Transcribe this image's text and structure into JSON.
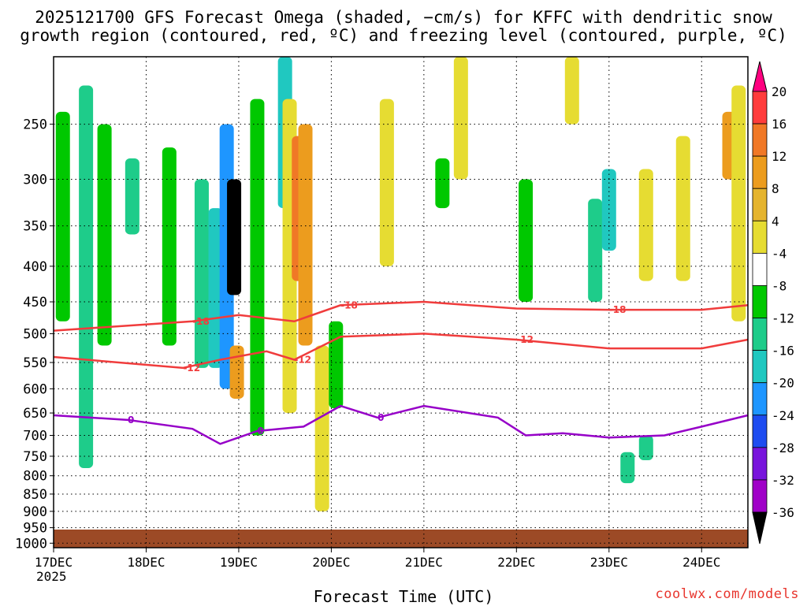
{
  "chart_data": {
    "type": "heatmap",
    "title_line1": "2025121700 GFS Forecast Omega (shaded, −cm/s) for KFFC with dendritic snow",
    "title_line2": "growth region (contoured, red, ºC) and freezing level (contoured, purple, ºC)",
    "xlabel": "Forecast Time (UTC)",
    "year_label": "2025",
    "x_ticks": [
      "17DEC",
      "18DEC",
      "19DEC",
      "20DEC",
      "21DEC",
      "22DEC",
      "23DEC",
      "24DEC"
    ],
    "x_range_days": [
      0,
      7.5
    ],
    "y_ticks": [
      250,
      300,
      350,
      400,
      450,
      500,
      550,
      600,
      650,
      700,
      750,
      800,
      850,
      900,
      950,
      1000
    ],
    "y_range_hpa": [
      200,
      1015
    ],
    "y_scale": "log-pressure",
    "grid": true,
    "colorbar": {
      "labels": [
        20,
        16,
        12,
        8,
        4,
        -4,
        -8,
        -12,
        -16,
        -20,
        -24,
        -28,
        -32,
        -36
      ],
      "colors": [
        "#ff0080",
        "#ff3c3c",
        "#f07826",
        "#ec9c1e",
        "#e5b42e",
        "#e6dc32",
        "#ffffff",
        "#00c800",
        "#1ecc8a",
        "#20c8c0",
        "#1e96ff",
        "#1e4cf0",
        "#7814dc",
        "#a000c8",
        "#a0a0a0",
        "#000000"
      ]
    },
    "omega_shading": [
      {
        "day": 0.1,
        "p_top": 240,
        "p_bot": 480,
        "value": -6
      },
      {
        "day": 0.35,
        "p_top": 220,
        "p_bot": 780,
        "value": -8
      },
      {
        "day": 0.55,
        "p_top": 250,
        "p_bot": 520,
        "value": -6
      },
      {
        "day": 0.85,
        "p_top": 280,
        "p_bot": 360,
        "value": -10
      },
      {
        "day": 1.25,
        "p_top": 270,
        "p_bot": 520,
        "value": -6
      },
      {
        "day": 1.6,
        "p_top": 300,
        "p_bot": 560,
        "value": -8
      },
      {
        "day": 1.75,
        "p_top": 330,
        "p_bot": 560,
        "value": -14
      },
      {
        "day": 1.87,
        "p_top": 250,
        "p_bot": 600,
        "value": -18
      },
      {
        "day": 1.95,
        "p_top": 300,
        "p_bot": 440,
        "value": -36
      },
      {
        "day": 1.98,
        "p_top": 520,
        "p_bot": 620,
        "value": 10
      },
      {
        "day": 2.2,
        "p_top": 230,
        "p_bot": 700,
        "value": -6
      },
      {
        "day": 2.5,
        "p_top": 200,
        "p_bot": 330,
        "value": -12
      },
      {
        "day": 2.55,
        "p_top": 230,
        "p_bot": 650,
        "value": 6
      },
      {
        "day": 2.65,
        "p_top": 260,
        "p_bot": 420,
        "value": 14
      },
      {
        "day": 2.72,
        "p_top": 250,
        "p_bot": 520,
        "value": 10
      },
      {
        "day": 2.9,
        "p_top": 520,
        "p_bot": 900,
        "value": 6
      },
      {
        "day": 3.05,
        "p_top": 480,
        "p_bot": 640,
        "value": -6
      },
      {
        "day": 3.6,
        "p_top": 230,
        "p_bot": 400,
        "value": 6
      },
      {
        "day": 4.2,
        "p_top": 280,
        "p_bot": 330,
        "value": -6
      },
      {
        "day": 4.4,
        "p_top": 200,
        "p_bot": 300,
        "value": 6
      },
      {
        "day": 5.1,
        "p_top": 300,
        "p_bot": 450,
        "value": -6
      },
      {
        "day": 5.6,
        "p_top": 200,
        "p_bot": 250,
        "value": 6
      },
      {
        "day": 5.85,
        "p_top": 320,
        "p_bot": 450,
        "value": -8
      },
      {
        "day": 6.0,
        "p_top": 290,
        "p_bot": 380,
        "value": -14
      },
      {
        "day": 6.4,
        "p_top": 290,
        "p_bot": 420,
        "value": 6
      },
      {
        "day": 6.8,
        "p_top": 260,
        "p_bot": 420,
        "value": 6
      },
      {
        "day": 7.3,
        "p_top": 240,
        "p_bot": 300,
        "value": 10
      },
      {
        "day": 7.4,
        "p_top": 220,
        "p_bot": 480,
        "value": 6
      },
      {
        "day": 6.2,
        "p_top": 740,
        "p_bot": 820,
        "value": -8
      },
      {
        "day": 6.4,
        "p_top": 700,
        "p_bot": 760,
        "value": -8
      }
    ],
    "contours": [
      {
        "label": "-18",
        "color": "#f03c3c",
        "points": [
          [
            0,
            495
          ],
          [
            1.5,
            480
          ],
          [
            2.0,
            470
          ],
          [
            2.6,
            480
          ],
          [
            3.1,
            455
          ],
          [
            4.0,
            450
          ],
          [
            5.0,
            460
          ],
          [
            6.0,
            462
          ],
          [
            7.0,
            462
          ],
          [
            7.5,
            455
          ]
        ]
      },
      {
        "label": "-12",
        "color": "#f03c3c",
        "points": [
          [
            0,
            540
          ],
          [
            1.4,
            560
          ],
          [
            1.8,
            545
          ],
          [
            2.3,
            530
          ],
          [
            2.6,
            545
          ],
          [
            3.1,
            505
          ],
          [
            4.0,
            500
          ],
          [
            5.0,
            510
          ],
          [
            6.0,
            525
          ],
          [
            7.0,
            525
          ],
          [
            7.5,
            510
          ]
        ]
      },
      {
        "label": "0",
        "color": "#9600c8",
        "points": [
          [
            0,
            655
          ],
          [
            0.8,
            665
          ],
          [
            1.5,
            685
          ],
          [
            1.8,
            720
          ],
          [
            2.2,
            690
          ],
          [
            2.7,
            680
          ],
          [
            3.1,
            635
          ],
          [
            3.5,
            660
          ],
          [
            4.0,
            635
          ],
          [
            4.8,
            660
          ],
          [
            5.1,
            700
          ],
          [
            5.5,
            695
          ],
          [
            6.0,
            705
          ],
          [
            6.6,
            700
          ],
          [
            7.0,
            680
          ],
          [
            7.5,
            655
          ]
        ]
      }
    ]
  }
}
